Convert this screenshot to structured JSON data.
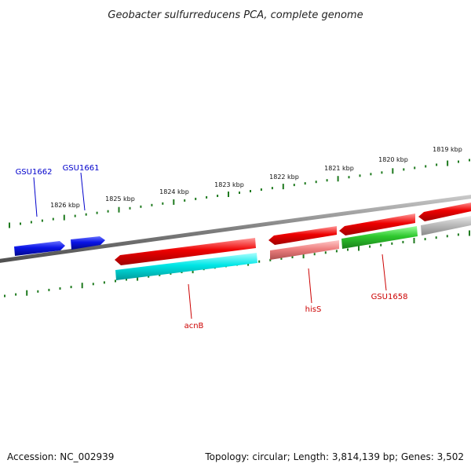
{
  "title": "Geobacter sulfurreducens PCA, complete genome",
  "footer": {
    "accession": "Accession: NC_002939",
    "summary": "Topology: circular; Length: 3,814,139 bp; Genes: 3,502"
  },
  "kbp_labels": [
    "1826 kbp",
    "1825 kbp",
    "1824 kbp",
    "1823 kbp",
    "1822 kbp",
    "1821 kbp",
    "1820 kbp",
    "1819 kbp"
  ],
  "gene_labels": {
    "gsu1662": "GSU1662",
    "gsu1661": "GSU1661",
    "acnb": "acnB",
    "hiss": "hisS",
    "gsu1658": "GSU1658"
  },
  "colors": {
    "backbone": "#7a7a7a",
    "ticks": "#1e7a1e",
    "blue": "#0a14e6",
    "red": "#e00000",
    "cyan": "#00e0e0",
    "pink": "#e87878",
    "green": "#2ec82e",
    "grey": "#b8b8b8",
    "label_blue": "#0000cc",
    "label_red": "#cc0000"
  }
}
